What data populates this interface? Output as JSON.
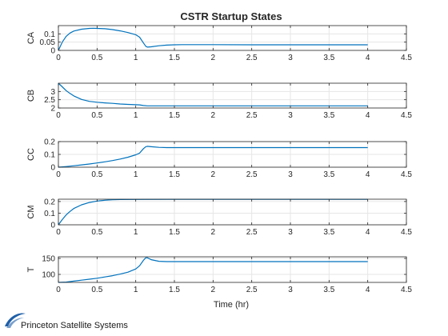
{
  "chart_data": {
    "type": "line",
    "title": "CSTR Startup States",
    "xlabel": "Time (hr)",
    "xlim": [
      0,
      4.5
    ],
    "xticks": [
      0,
      0.5,
      1,
      1.5,
      2,
      2.5,
      3,
      3.5,
      4,
      4.5
    ],
    "xtick_labels": [
      "0",
      "0.5",
      "1",
      "1.5",
      "2",
      "2.5",
      "3",
      "3.5",
      "4",
      "4.5"
    ],
    "grid": true,
    "line_color": "#0072bd",
    "subplots": [
      {
        "ylabel": "CA",
        "ylim": [
          0,
          0.15
        ],
        "yticks": [
          0,
          0.05,
          0.1
        ],
        "ytick_labels": [
          "0",
          "0.05",
          "0.1"
        ],
        "points": [
          [
            0,
            0
          ],
          [
            0.05,
            0.05
          ],
          [
            0.1,
            0.085
          ],
          [
            0.15,
            0.105
          ],
          [
            0.2,
            0.117
          ],
          [
            0.3,
            0.128
          ],
          [
            0.4,
            0.133
          ],
          [
            0.45,
            0.134
          ],
          [
            0.5,
            0.133
          ],
          [
            0.6,
            0.131
          ],
          [
            0.7,
            0.126
          ],
          [
            0.8,
            0.118
          ],
          [
            0.9,
            0.108
          ],
          [
            1.0,
            0.095
          ],
          [
            1.05,
            0.08
          ],
          [
            1.1,
            0.045
          ],
          [
            1.13,
            0.025
          ],
          [
            1.15,
            0.02
          ],
          [
            1.2,
            0.022
          ],
          [
            1.3,
            0.028
          ],
          [
            1.4,
            0.032
          ],
          [
            1.5,
            0.034
          ],
          [
            1.6,
            0.035
          ],
          [
            1.8,
            0.035
          ],
          [
            2.0,
            0.035
          ],
          [
            2.5,
            0.034
          ],
          [
            3.0,
            0.034
          ],
          [
            3.5,
            0.034
          ],
          [
            4.0,
            0.034
          ]
        ]
      },
      {
        "ylabel": "CB",
        "ylim": [
          2,
          3.5
        ],
        "yticks": [
          2,
          2.5,
          3
        ],
        "ytick_labels": [
          "2",
          "2.5",
          "3"
        ],
        "points": [
          [
            0,
            3.5
          ],
          [
            0.05,
            3.28
          ],
          [
            0.1,
            3.05
          ],
          [
            0.15,
            2.88
          ],
          [
            0.2,
            2.73
          ],
          [
            0.3,
            2.52
          ],
          [
            0.4,
            2.4
          ],
          [
            0.5,
            2.35
          ],
          [
            0.6,
            2.31
          ],
          [
            0.7,
            2.28
          ],
          [
            0.8,
            2.24
          ],
          [
            0.9,
            2.22
          ],
          [
            1.0,
            2.2
          ],
          [
            1.05,
            2.19
          ],
          [
            1.1,
            2.15
          ],
          [
            1.15,
            2.13
          ],
          [
            1.3,
            2.13
          ],
          [
            1.5,
            2.13
          ],
          [
            2.0,
            2.13
          ],
          [
            2.5,
            2.13
          ],
          [
            3.0,
            2.13
          ],
          [
            3.5,
            2.13
          ],
          [
            4.0,
            2.13
          ]
        ]
      },
      {
        "ylabel": "CC",
        "ylim": [
          0,
          0.2
        ],
        "yticks": [
          0,
          0.1,
          0.2
        ],
        "ytick_labels": [
          "0",
          "0.1",
          "0.2"
        ],
        "points": [
          [
            0,
            0
          ],
          [
            0.1,
            0.005
          ],
          [
            0.2,
            0.011
          ],
          [
            0.3,
            0.018
          ],
          [
            0.4,
            0.025
          ],
          [
            0.5,
            0.033
          ],
          [
            0.6,
            0.042
          ],
          [
            0.7,
            0.052
          ],
          [
            0.8,
            0.064
          ],
          [
            0.9,
            0.078
          ],
          [
            1.0,
            0.097
          ],
          [
            1.05,
            0.11
          ],
          [
            1.1,
            0.145
          ],
          [
            1.13,
            0.16
          ],
          [
            1.15,
            0.163
          ],
          [
            1.2,
            0.16
          ],
          [
            1.3,
            0.155
          ],
          [
            1.4,
            0.153
          ],
          [
            1.5,
            0.153
          ],
          [
            2.0,
            0.153
          ],
          [
            2.5,
            0.153
          ],
          [
            3.0,
            0.153
          ],
          [
            3.5,
            0.153
          ],
          [
            4.0,
            0.153
          ]
        ]
      },
      {
        "ylabel": "CM",
        "ylim": [
          0,
          0.22
        ],
        "yticks": [
          0,
          0.1,
          0.2
        ],
        "ytick_labels": [
          "0",
          "0.1",
          "0.2"
        ],
        "points": [
          [
            0,
            0
          ],
          [
            0.05,
            0.045
          ],
          [
            0.1,
            0.085
          ],
          [
            0.15,
            0.115
          ],
          [
            0.2,
            0.14
          ],
          [
            0.3,
            0.172
          ],
          [
            0.4,
            0.192
          ],
          [
            0.5,
            0.204
          ],
          [
            0.6,
            0.211
          ],
          [
            0.7,
            0.215
          ],
          [
            0.8,
            0.217
          ],
          [
            1.0,
            0.218
          ],
          [
            1.5,
            0.219
          ],
          [
            2.0,
            0.219
          ],
          [
            3.0,
            0.219
          ],
          [
            4.0,
            0.219
          ]
        ]
      },
      {
        "ylabel": "T",
        "ylim": [
          75,
          155
        ],
        "yticks": [
          100,
          150
        ],
        "ytick_labels": [
          "100",
          "150"
        ],
        "points": [
          [
            0,
            75
          ],
          [
            0.1,
            76
          ],
          [
            0.2,
            79
          ],
          [
            0.3,
            82
          ],
          [
            0.4,
            85
          ],
          [
            0.5,
            88
          ],
          [
            0.6,
            92
          ],
          [
            0.7,
            96
          ],
          [
            0.8,
            101
          ],
          [
            0.9,
            107
          ],
          [
            1.0,
            117
          ],
          [
            1.05,
            127
          ],
          [
            1.1,
            144
          ],
          [
            1.13,
            152
          ],
          [
            1.15,
            152
          ],
          [
            1.2,
            146
          ],
          [
            1.3,
            141
          ],
          [
            1.4,
            140
          ],
          [
            1.6,
            140
          ],
          [
            2.0,
            140
          ],
          [
            2.5,
            140
          ],
          [
            3.0,
            140
          ],
          [
            3.5,
            140
          ],
          [
            4.0,
            140
          ]
        ]
      }
    ]
  },
  "logo": {
    "text": "Princeton Satellite Systems",
    "color": "#1f5fa8"
  }
}
